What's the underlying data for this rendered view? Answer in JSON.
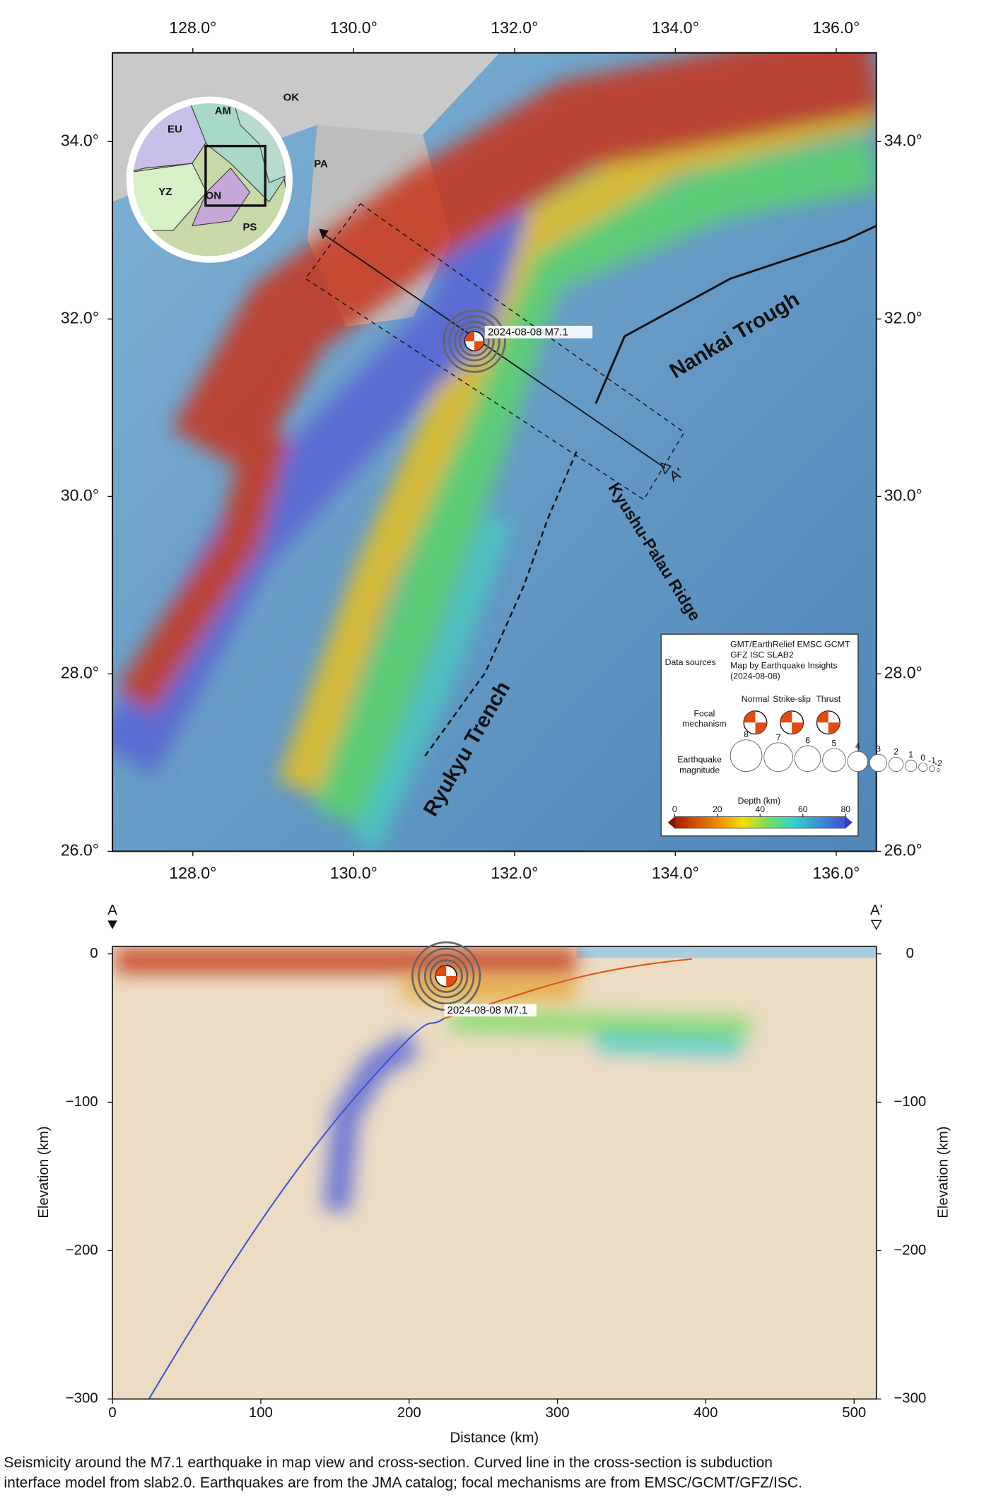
{
  "map": {
    "xlim": [
      127,
      136.5
    ],
    "ylim": [
      26,
      35
    ],
    "xticks": [
      {
        "value": 128,
        "label": "128.0°"
      },
      {
        "value": 130,
        "label": "130.0°"
      },
      {
        "value": 132,
        "label": "132.0°"
      },
      {
        "value": 134,
        "label": "134.0°"
      },
      {
        "value": 136,
        "label": "136.0°"
      }
    ],
    "yticks": [
      {
        "value": 26,
        "label": "26.0°"
      },
      {
        "value": 28,
        "label": "28.0°"
      },
      {
        "value": 30,
        "label": "30.0°"
      },
      {
        "value": 32,
        "label": "32.0°"
      },
      {
        "value": 34,
        "label": "34.0°"
      }
    ],
    "features": {
      "nankai": "Nankai Trough",
      "kyushu": "Kyushu-Palau Ridge",
      "ryukyu": "Ryukyu Trench"
    },
    "profile_end": "A'",
    "event": {
      "lon": 131.5,
      "lat": 31.75,
      "label": "2024-08-08 M7.1"
    },
    "plates": [
      "EU",
      "AM",
      "OK",
      "PA",
      "YZ",
      "ON",
      "PS"
    ],
    "legend": {
      "sources_title": "Data sources",
      "sources": [
        "GMT/EarthRelief EMSC GCMT",
        "GFZ ISC SLAB2",
        "Map by Earthquake Insights",
        "(2024-08-08)"
      ],
      "focal_title": [
        "Focal",
        "mechanism"
      ],
      "focal_types": [
        "Normal",
        "Strike-slip",
        "Thrust"
      ],
      "magnitude_title": [
        "Earthquake",
        "magnitude"
      ],
      "magnitudes": [
        8,
        7,
        6,
        5,
        4,
        3,
        2,
        1,
        0,
        -1,
        -2
      ],
      "depth_title": "Depth (km)",
      "depth_lim": [
        0,
        80
      ],
      "depth_ticks": [
        0,
        20,
        40,
        60,
        80
      ]
    }
  },
  "section": {
    "xlim": [
      0,
      515
    ],
    "ylim": [
      -300,
      5
    ],
    "xticks": [
      0,
      100,
      200,
      300,
      400,
      500
    ],
    "yticks": [
      0,
      {
        "value": -100,
        "label": "−100"
      },
      {
        "value": -200,
        "label": "−200"
      },
      {
        "value": -300,
        "label": "−300"
      }
    ],
    "xlabel": "Distance (km)",
    "ylabel": "Elevation (km)",
    "start": "A",
    "end": "A'",
    "event": {
      "distance": 225,
      "depth": -15,
      "label": "2024-08-08 M7.1"
    }
  },
  "caption": [
    "Seismicity around the M7.1 earthquake in map view and cross-section. Curved line in the cross-section is subduction",
    "interface model from slab2.0. Earthquakes are from the JMA catalog; focal mechanisms are from EMSC/GCMT/GFZ/ISC."
  ]
}
